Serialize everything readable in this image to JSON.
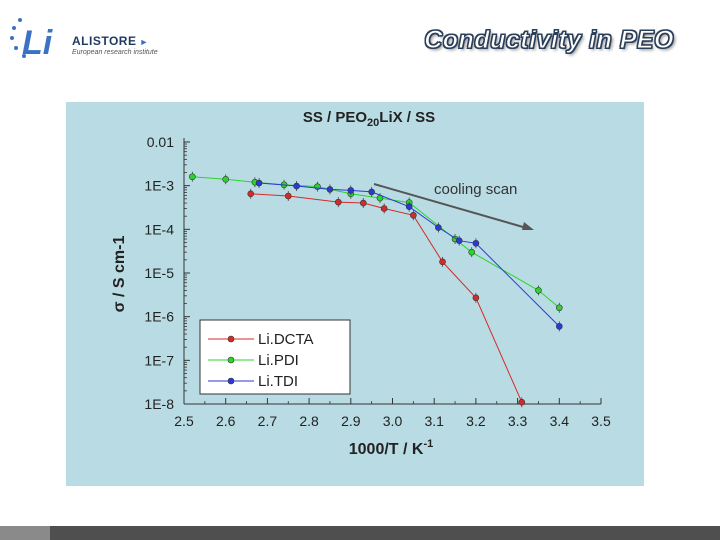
{
  "header": {
    "logo_brand": "ALISTORE",
    "logo_sub": "European research institute",
    "title": "Conductivity in PEO"
  },
  "colors": {
    "panel_bg": "#b9dce4",
    "series": [
      "#d42a2a",
      "#2ad42a",
      "#2a3ad4"
    ],
    "annotation_arrow": "#555555"
  },
  "chart_data": {
    "type": "scatter",
    "title": "SS / PEO20LiX / SS",
    "title_parts": {
      "prefix": "SS / PEO",
      "subscript": "20",
      "suffix": "LiX / SS"
    },
    "xlabel": "1000/T / K-1",
    "xlabel_parts": {
      "main": "1000/T / K",
      "superscript": "-1"
    },
    "ylabel": "σ / S cm-1",
    "yscale": "log",
    "xlim": [
      2.5,
      3.5
    ],
    "ylim": [
      1e-08,
      0.01
    ],
    "xticks": [
      "2.5",
      "2.6",
      "2.7",
      "2.8",
      "2.9",
      "3.0",
      "3.1",
      "3.2",
      "3.3",
      "3.4",
      "3.5"
    ],
    "yticks": [
      "0.01",
      "1E-3",
      "1E-4",
      "1E-5",
      "1E-6",
      "1E-7",
      "1E-8"
    ],
    "legend_position": "bottom-left",
    "annotation": "cooling scan",
    "series": [
      {
        "name": "Li.DCTA",
        "x": [
          2.66,
          2.75,
          2.87,
          2.93,
          2.98,
          3.05,
          3.12,
          3.2,
          3.31
        ],
        "y": [
          0.00065,
          0.00058,
          0.00042,
          0.0004,
          0.0003,
          0.00021,
          1.8e-05,
          2.7e-06,
          1.1e-08
        ]
      },
      {
        "name": "Li.PDI",
        "x": [
          2.52,
          2.6,
          2.67,
          2.74,
          2.82,
          2.9,
          2.97,
          3.04,
          3.15,
          3.19,
          3.35,
          3.4
        ],
        "y": [
          0.0016,
          0.0014,
          0.0012,
          0.00105,
          0.00095,
          0.00065,
          0.00052,
          0.00041,
          6e-05,
          3e-05,
          4e-06,
          1.6e-06
        ]
      },
      {
        "name": "Li.TDI",
        "x": [
          2.68,
          2.77,
          2.85,
          2.9,
          2.95,
          3.04,
          3.11,
          3.16,
          3.2,
          3.4
        ],
        "y": [
          0.00115,
          0.00098,
          0.00082,
          0.00078,
          0.00072,
          0.00033,
          0.00011,
          5.5e-05,
          4.8e-05,
          6e-07
        ]
      }
    ]
  }
}
